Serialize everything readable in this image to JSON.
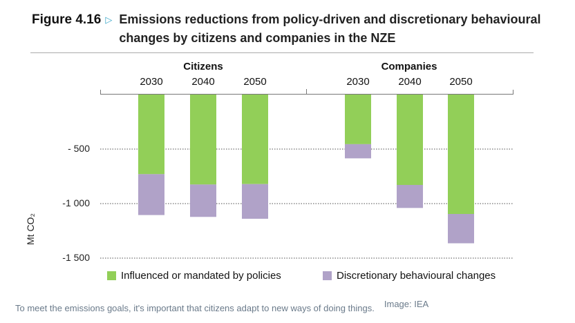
{
  "figure": {
    "label": "Figure 4.16",
    "title": "Emissions reductions from policy-driven and discretionary behavioural changes by citizens and companies in the NZE"
  },
  "colors": {
    "policy": "#92cf58",
    "discretionary": "#b0a2c8",
    "arrow": "#3aa6c8"
  },
  "chart_data": {
    "type": "bar",
    "stacked": true,
    "title": "Emissions reductions from policy-driven and discretionary behavioural changes by citizens and companies in the NZE",
    "groups": [
      "Citizens",
      "Companies"
    ],
    "categories": [
      "2030",
      "2040",
      "2050",
      "2030",
      "2040",
      "2050"
    ],
    "category_groups": [
      "Citizens",
      "Citizens",
      "Citizens",
      "Companies",
      "Companies",
      "Companies"
    ],
    "series": [
      {
        "name": "Influenced or mandated by policies",
        "values": [
          -730,
          -825,
          -821,
          -455,
          -829,
          -1095
        ]
      },
      {
        "name": "Discretionary behavioural changes",
        "values": [
          -375,
          -297,
          -318,
          -130,
          -211,
          -269
        ]
      }
    ],
    "ylabel": "Mt CO₂",
    "ylim": [
      -1500,
      0
    ],
    "yticks": [
      -500,
      -1000,
      -1500
    ],
    "ytick_labels": [
      "- 500",
      "-1 000",
      "-1 500"
    ],
    "grid": "dotted horizontal",
    "legend": "bottom"
  },
  "caption": "To meet the emissions goals, it's important that citizens adapt to new ways of doing things.",
  "credit": "Image: IEA"
}
